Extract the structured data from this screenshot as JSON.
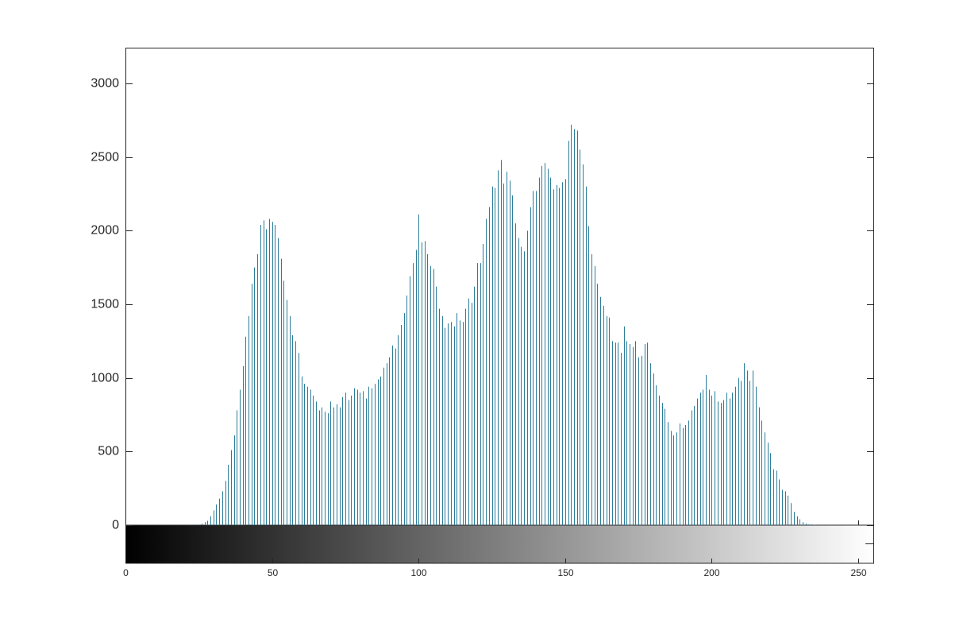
{
  "chart_data": {
    "type": "stem",
    "color": "#2b7d99",
    "x": [
      0,
      1,
      2,
      3,
      4,
      5,
      6,
      7,
      8,
      9,
      10,
      11,
      12,
      13,
      14,
      15,
      16,
      17,
      18,
      19,
      20,
      21,
      22,
      23,
      24,
      25,
      26,
      27,
      28,
      29,
      30,
      31,
      32,
      33,
      34,
      35,
      36,
      37,
      38,
      39,
      40,
      41,
      42,
      43,
      44,
      45,
      46,
      47,
      48,
      49,
      50,
      51,
      52,
      53,
      54,
      55,
      56,
      57,
      58,
      59,
      60,
      61,
      62,
      63,
      64,
      65,
      66,
      67,
      68,
      69,
      70,
      71,
      72,
      73,
      74,
      75,
      76,
      77,
      78,
      79,
      80,
      81,
      82,
      83,
      84,
      85,
      86,
      87,
      88,
      89,
      90,
      91,
      92,
      93,
      94,
      95,
      96,
      97,
      98,
      99,
      100,
      101,
      102,
      103,
      104,
      105,
      106,
      107,
      108,
      109,
      110,
      111,
      112,
      113,
      114,
      115,
      116,
      117,
      118,
      119,
      120,
      121,
      122,
      123,
      124,
      125,
      126,
      127,
      128,
      129,
      130,
      131,
      132,
      133,
      134,
      135,
      136,
      137,
      138,
      139,
      140,
      141,
      142,
      143,
      144,
      145,
      146,
      147,
      148,
      149,
      150,
      151,
      152,
      153,
      154,
      155,
      156,
      157,
      158,
      159,
      160,
      161,
      162,
      163,
      164,
      165,
      166,
      167,
      168,
      169,
      170,
      171,
      172,
      173,
      174,
      175,
      176,
      177,
      178,
      179,
      180,
      181,
      182,
      183,
      184,
      185,
      186,
      187,
      188,
      189,
      190,
      191,
      192,
      193,
      194,
      195,
      196,
      197,
      198,
      199,
      200,
      201,
      202,
      203,
      204,
      205,
      206,
      207,
      208,
      209,
      210,
      211,
      212,
      213,
      214,
      215,
      216,
      217,
      218,
      219,
      220,
      221,
      222,
      223,
      224,
      225,
      226,
      227,
      228,
      229,
      230,
      231,
      232,
      233,
      234,
      235,
      236,
      237,
      238,
      239,
      240,
      241,
      242,
      243,
      244,
      245,
      246,
      247,
      248,
      249,
      250,
      251,
      252,
      253,
      254,
      255
    ],
    "values": [
      0,
      0,
      0,
      0,
      0,
      0,
      0,
      0,
      0,
      0,
      0,
      0,
      0,
      0,
      0,
      0,
      0,
      0,
      0,
      0,
      0,
      0,
      0,
      0,
      0,
      0,
      10,
      20,
      30,
      60,
      100,
      140,
      180,
      230,
      300,
      410,
      510,
      610,
      780,
      920,
      1080,
      1280,
      1420,
      1640,
      1750,
      1840,
      2040,
      2070,
      2010,
      2080,
      2060,
      2040,
      1950,
      1810,
      1660,
      1530,
      1420,
      1290,
      1250,
      1170,
      1010,
      960,
      940,
      920,
      880,
      840,
      780,
      800,
      770,
      760,
      840,
      800,
      820,
      800,
      870,
      900,
      850,
      880,
      930,
      920,
      900,
      910,
      860,
      940,
      930,
      960,
      990,
      1010,
      1070,
      1100,
      1140,
      1220,
      1200,
      1290,
      1360,
      1440,
      1560,
      1690,
      1780,
      1870,
      2110,
      1920,
      1930,
      1840,
      1760,
      1740,
      1620,
      1470,
      1420,
      1340,
      1370,
      1380,
      1350,
      1440,
      1390,
      1380,
      1470,
      1540,
      1510,
      1620,
      1780,
      1780,
      1910,
      2080,
      2160,
      2300,
      2290,
      2410,
      2480,
      2320,
      2400,
      2340,
      2240,
      2050,
      1950,
      1890,
      1860,
      2000,
      2160,
      2270,
      2270,
      2360,
      2440,
      2460,
      2420,
      2360,
      2280,
      2310,
      2290,
      2330,
      2350,
      2610,
      2720,
      2690,
      2680,
      2550,
      2450,
      2300,
      2030,
      1840,
      1760,
      1640,
      1550,
      1490,
      1420,
      1410,
      1250,
      1240,
      1240,
      1170,
      1350,
      1250,
      1230,
      1210,
      1250,
      1140,
      1150,
      1230,
      1240,
      1100,
      1030,
      950,
      880,
      830,
      790,
      700,
      640,
      610,
      630,
      690,
      660,
      680,
      710,
      780,
      810,
      860,
      900,
      920,
      1020,
      920,
      880,
      910,
      840,
      830,
      850,
      900,
      860,
      900,
      940,
      1000,
      980,
      1100,
      1050,
      980,
      1050,
      940,
      800,
      710,
      630,
      560,
      490,
      380,
      370,
      310,
      240,
      230,
      200,
      150,
      90,
      60,
      40,
      20,
      10,
      5,
      5,
      3,
      0,
      0,
      0,
      0,
      0,
      0,
      0,
      0,
      0,
      0,
      0,
      0,
      0,
      0,
      0,
      0,
      0,
      0,
      0,
      0
    ],
    "xlim": [
      0,
      255.4
    ],
    "xticks": [
      0,
      50,
      100,
      150,
      200,
      250
    ],
    "ylim": [
      0,
      3243
    ],
    "yticks": [
      0,
      500,
      1000,
      1500,
      2000,
      2500,
      3000
    ]
  }
}
